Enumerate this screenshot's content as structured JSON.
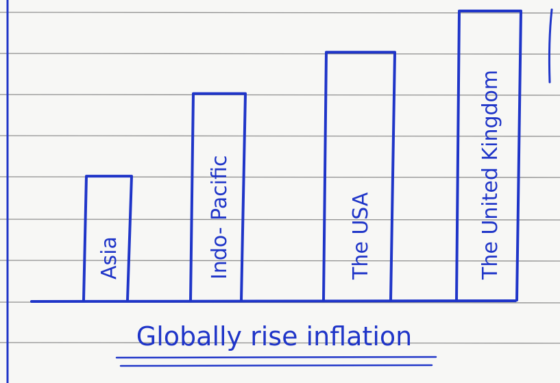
{
  "chart_data": {
    "type": "bar",
    "title": "Globally rise inflation",
    "categories": [
      "Asia",
      "Indo- Pacific",
      "The USA",
      "The United Kingdom"
    ],
    "values": [
      3,
      5,
      6,
      7
    ],
    "xlabel": "",
    "ylabel": "",
    "ylim": [
      0,
      7
    ],
    "grid": true,
    "ink_color": "#1f35c8"
  }
}
